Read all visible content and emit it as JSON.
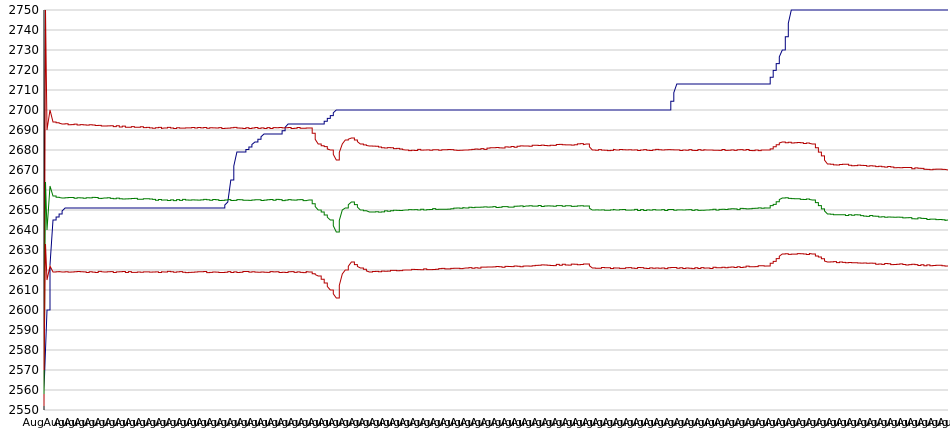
{
  "chart_data": {
    "type": "line",
    "ylim": [
      2550,
      2750
    ],
    "yticks": [
      "2550",
      "2560",
      "2570",
      "2580",
      "2590",
      "2600",
      "2610",
      "2620",
      "2630",
      "2640",
      "2650",
      "2660",
      "2670",
      "2680",
      "2690",
      "2700",
      "2710",
      "2720",
      "2730",
      "2740",
      "2750"
    ],
    "grid": true,
    "x_tick_text": "Aug",
    "x_tick_count": 90,
    "colors": {
      "blue": "#00007f",
      "red": "#b30000",
      "green": "#007a00",
      "grid": "#c8c8c8",
      "axis": "#000000"
    },
    "series": [
      {
        "color": "#00007f",
        "x": [
          0.0,
          0.01,
          0.03,
          0.07,
          0.5,
          0.57,
          0.59,
          0.61,
          0.62,
          0.64,
          0.66,
          0.7,
          0.73,
          0.78,
          0.81,
          0.92,
          0.97,
          1.23,
          1.25,
          2.07,
          2.1,
          2.4,
          2.45,
          2.48,
          2.5,
          3.0
        ],
        "values": [
          2560,
          2600,
          2645,
          2651,
          2651,
          2651,
          2651,
          2654,
          2665,
          2679,
          2679,
          2684,
          2688,
          2688,
          2693,
          2693,
          2700,
          2700,
          2700,
          2700,
          2713,
          2713,
          2730,
          2750,
          2750,
          2750
        ]
      },
      {
        "color": "#b30000",
        "x": [
          0.0,
          0.005,
          0.01,
          0.02,
          0.03,
          0.06,
          0.2,
          0.4,
          0.88,
          0.91,
          0.95,
          0.97,
          0.99,
          1.0,
          1.02,
          1.05,
          1.08,
          1.2,
          1.4,
          1.6,
          1.8,
          1.82,
          1.9,
          2.2,
          2.4,
          2.45,
          2.55,
          2.6,
          3.0
        ],
        "values": [
          2552,
          2750,
          2690,
          2700,
          2694,
          2693,
          2692,
          2691,
          2691,
          2683,
          2680,
          2675,
          2683,
          2685,
          2686,
          2683,
          2682,
          2680,
          2680,
          2682,
          2683,
          2680,
          2680,
          2680,
          2680,
          2684,
          2683,
          2673,
          2670
        ]
      },
      {
        "color": "#007a00",
        "x": [
          0.0,
          0.005,
          0.01,
          0.02,
          0.03,
          0.06,
          0.2,
          0.4,
          0.88,
          0.91,
          0.95,
          0.97,
          0.99,
          1.0,
          1.02,
          1.05,
          1.08,
          1.2,
          1.4,
          1.6,
          1.8,
          1.82,
          1.9,
          2.2,
          2.4,
          2.45,
          2.55,
          2.6,
          3.0
        ],
        "values": [
          2558,
          2664,
          2640,
          2662,
          2657,
          2656,
          2656,
          2655,
          2655,
          2650,
          2645,
          2639,
          2650,
          2651,
          2654,
          2650,
          2649,
          2650,
          2651,
          2652,
          2652,
          2650,
          2650,
          2650,
          2651,
          2656,
          2655,
          2648,
          2645
        ]
      },
      {
        "color": "#b30000",
        "x": [
          0.0,
          0.005,
          0.01,
          0.02,
          0.03,
          0.06,
          0.2,
          0.4,
          0.88,
          0.91,
          0.95,
          0.97,
          0.99,
          1.0,
          1.02,
          1.05,
          1.08,
          1.2,
          1.4,
          1.6,
          1.8,
          1.82,
          1.9,
          2.2,
          2.4,
          2.45,
          2.55,
          2.6,
          3.0
        ],
        "values": [
          2570,
          2633,
          2615,
          2622,
          2619,
          2619,
          2619,
          2619,
          2619,
          2617,
          2610,
          2606,
          2618,
          2620,
          2624,
          2621,
          2619,
          2620,
          2621,
          2622,
          2623,
          2621,
          2621,
          2621,
          2622,
          2628,
          2628,
          2624,
          2622
        ]
      }
    ]
  }
}
